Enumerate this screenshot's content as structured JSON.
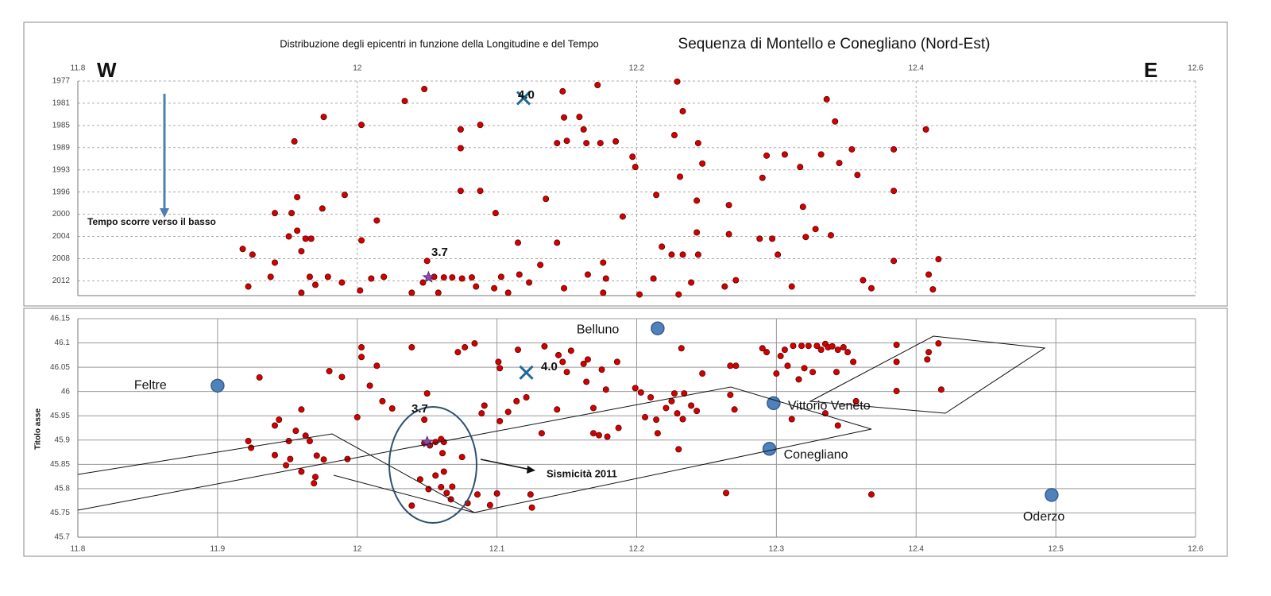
{
  "chart_data": [
    {
      "type": "scatter",
      "title": "Distribuzione degli epicentri in funzione della Longitudine e del Tempo",
      "subtitle": "Sequenza di Montello e Conegliano (Nord-Est)",
      "annotations": [
        "W",
        "E",
        "Tempo scorre verso il basso",
        "4.0",
        "3.7"
      ],
      "xlim": [
        11.8,
        12.6
      ],
      "xticks": [
        11.8,
        12,
        12.2,
        12.4,
        12.6
      ],
      "xaxis_position": "top",
      "ylim": [
        1977,
        2014.7
      ],
      "y_reversed": true,
      "yticks": [
        {
          "value": 1977,
          "label": "1977"
        },
        {
          "value": 1980.9,
          "label": "1981"
        },
        {
          "value": 1984.8,
          "label": "1985"
        },
        {
          "value": 1988.7,
          "label": "1989"
        },
        {
          "value": 1992.6,
          "label": "1993"
        },
        {
          "value": 1996.5,
          "label": "1996"
        },
        {
          "value": 2000.4,
          "label": "2000"
        },
        {
          "value": 2004.3,
          "label": "2004"
        },
        {
          "value": 2008.2,
          "label": "2008"
        },
        {
          "value": 2012.1,
          "label": "2012"
        }
      ],
      "grid": true,
      "grid_style": "dashed",
      "series": [
        {
          "color": "#d40000",
          "marker": "circle",
          "x": [
            11.918,
            11.922,
            11.925,
            11.941,
            11.938,
            11.955,
            11.957,
            11.941,
            11.953,
            11.951,
            11.957,
            11.96,
            11.963,
            11.967,
            11.976,
            11.975,
            11.966,
            11.96,
            11.979,
            11.97,
            11.991,
            11.989,
            12.003,
            12.003,
            12.014,
            12.01,
            12.002,
            12.019,
            12.034,
            12.048,
            12.039,
            12.047,
            12.05,
            12.055,
            12.062,
            12.068,
            12.058,
            12.074,
            12.074,
            12.074,
            12.075,
            12.082,
            12.088,
            12.088,
            12.085,
            12.099,
            12.098,
            12.103,
            12.108,
            12.115,
            12.116,
            12.123,
            12.131,
            12.135,
            12.143,
            12.143,
            12.147,
            12.148,
            12.15,
            12.148,
            12.159,
            12.162,
            12.164,
            12.172,
            12.174,
            12.165,
            12.176,
            12.178,
            12.176,
            12.185,
            12.19,
            12.197,
            12.199,
            12.202,
            12.212,
            12.214,
            12.218,
            12.225,
            12.227,
            12.229,
            12.233,
            12.231,
            12.23,
            12.233,
            12.239,
            12.243,
            12.244,
            12.247,
            12.243,
            12.244,
            12.263,
            12.266,
            12.266,
            12.271,
            12.288,
            12.29,
            12.293,
            12.297,
            12.301,
            12.306,
            12.311,
            12.317,
            12.321,
            12.319,
            12.328,
            12.332,
            12.336,
            12.342,
            12.339,
            12.345,
            12.354,
            12.358,
            12.362,
            12.368,
            12.384,
            12.384,
            12.384,
            12.407,
            12.409,
            12.416,
            12.412
          ],
          "values": [
            2006.5,
            2013.1,
            2007.5,
            2008.9,
            2011.4,
            1987.6,
            1997.4,
            2000.2,
            2000.2,
            2004.3,
            2003.3,
            2006.9,
            2004.7,
            2004.7,
            1983.3,
            1999.4,
            2011.4,
            2014.2,
            2011.4,
            2012.8,
            1997,
            2012.4,
            1984.7,
            2005,
            2001.5,
            2011.7,
            2013.8,
            2011.4,
            1980.5,
            1978.4,
            2014.2,
            2012.4,
            2008.6,
            2011.4,
            2011.5,
            2011.5,
            2014.2,
            1988.8,
            1985.5,
            1996.3,
            2011.7,
            2011.5,
            1984.7,
            1996.3,
            2013.1,
            2000.2,
            2013.4,
            2011.4,
            2014.2,
            2005.4,
            2011,
            2012.4,
            2009.3,
            1997.7,
            2005.4,
            1987.9,
            1978.8,
            1983.4,
            1987.5,
            2013.4,
            1983.3,
            1985.5,
            1987.9,
            1977.7,
            1987.9,
            2011,
            2008.9,
            2011.7,
            2014.2,
            1987.6,
            2000.8,
            1990.3,
            1992.1,
            2014.5,
            2011.7,
            1997,
            2006.1,
            2007.5,
            1986.5,
            1977.1,
            1982.3,
            1993.8,
            2014.5,
            2007.5,
            2012.4,
            1998,
            1987.9,
            1991.5,
            2003.6,
            2007.5,
            2013.1,
            1998.8,
            2003.9,
            2012,
            2004.7,
            1994,
            1990.1,
            2004.7,
            2007.5,
            1989.9,
            2013.1,
            1992.1,
            2004.4,
            1999.1,
            2003,
            1989.9,
            1980.2,
            1984.1,
            2004.1,
            1991.4,
            1989,
            1993.5,
            2012,
            2013.4,
            1989,
            1996.3,
            2008.6,
            1985.5,
            2011,
            2008.3,
            2013.6
          ]
        },
        {
          "color": "#1f6a96",
          "marker": "x",
          "x": [
            12.119
          ],
          "values": [
            1980
          ]
        },
        {
          "color": "#8a4aa8",
          "marker": "star",
          "x": [
            12.051
          ],
          "values": [
            2011.5
          ]
        }
      ]
    },
    {
      "type": "scatter",
      "ylabel": "Titolo asse",
      "annotations": [
        "4.0",
        "3.7",
        "Sismicità 2011"
      ],
      "xlim": [
        11.8,
        12.6
      ],
      "xticks": [
        11.8,
        11.9,
        12,
        12.1,
        12.2,
        12.3,
        12.4,
        12.5,
        12.6
      ],
      "xaxis_position": "bottom",
      "ylim": [
        45.7,
        46.15
      ],
      "yticks": [
        45.7,
        45.75,
        45.8,
        45.85,
        45.9,
        45.95,
        46,
        46.05,
        46.1,
        46.15
      ],
      "grid": true,
      "grid_style": "solid",
      "series": [
        {
          "color": "#d40000",
          "marker": "circle",
          "x": [
            11.922,
            11.924,
            11.941,
            11.93,
            11.941,
            11.944,
            11.951,
            11.949,
            11.952,
            11.956,
            11.96,
            11.96,
            11.963,
            11.966,
            11.969,
            11.97,
            11.971,
            11.976,
            11.98,
            11.989,
            11.993,
            12.0,
            12.003,
            12.003,
            12.009,
            12.014,
            12.018,
            12.025,
            12.039,
            12.039,
            12.048,
            12.05,
            12.048,
            12.052,
            12.056,
            12.06,
            12.062,
            12.045,
            12.051,
            12.056,
            12.06,
            12.062,
            12.064,
            12.067,
            12.068,
            12.061,
            12.072,
            12.077,
            12.075,
            12.084,
            12.079,
            12.086,
            12.091,
            12.089,
            12.095,
            12.1,
            12.101,
            12.102,
            12.102,
            12.108,
            12.114,
            12.115,
            12.121,
            12.124,
            12.125,
            12.132,
            12.134,
            12.143,
            12.144,
            12.147,
            12.15,
            12.153,
            12.162,
            12.164,
            12.165,
            12.169,
            12.169,
            12.173,
            12.179,
            12.175,
            12.178,
            12.186,
            12.187,
            12.199,
            12.203,
            12.206,
            12.21,
            12.214,
            12.215,
            12.221,
            12.225,
            12.227,
            12.229,
            12.23,
            12.232,
            12.233,
            12.234,
            12.239,
            12.243,
            12.247,
            12.264,
            12.267,
            12.271,
            12.267,
            12.27,
            12.29,
            12.293,
            12.303,
            12.3,
            12.306,
            12.308,
            12.312,
            12.318,
            12.316,
            12.32,
            12.323,
            12.326,
            12.329,
            12.332,
            12.335,
            12.337,
            12.34,
            12.344,
            12.348,
            12.351,
            12.335,
            12.343,
            12.355,
            12.357,
            12.344,
            12.368,
            12.386,
            12.386,
            12.386,
            12.409,
            12.416,
            12.418,
            12.408,
            12.311
          ],
          "values": [
            45.898,
            45.884,
            45.93,
            46.029,
            45.869,
            45.942,
            45.898,
            45.848,
            45.861,
            45.919,
            45.963,
            45.835,
            45.909,
            45.898,
            45.811,
            45.824,
            45.868,
            45.86,
            46.042,
            46.03,
            45.861,
            45.947,
            46.091,
            46.071,
            46.012,
            46.053,
            45.98,
            45.965,
            46.091,
            45.765,
            45.942,
            45.996,
            45.894,
            45.889,
            45.896,
            45.902,
            45.896,
            45.819,
            45.799,
            45.827,
            45.803,
            45.835,
            45.791,
            45.778,
            45.804,
            45.873,
            46.081,
            46.091,
            45.865,
            46.099,
            45.77,
            45.788,
            45.971,
            45.955,
            45.766,
            45.79,
            46.061,
            46.048,
            45.939,
            45.958,
            45.98,
            46.086,
            45.988,
            45.788,
            45.761,
            45.914,
            46.093,
            45.963,
            46.075,
            46.061,
            46.04,
            46.084,
            46.057,
            46.02,
            46.066,
            45.966,
            45.914,
            45.91,
            45.907,
            46.045,
            46.004,
            46.061,
            45.925,
            46.007,
            45.998,
            45.947,
            45.988,
            45.942,
            45.914,
            45.966,
            45.98,
            45.996,
            45.955,
            45.881,
            46.089,
            45.943,
            45.996,
            45.971,
            45.96,
            46.037,
            45.791,
            46.053,
            46.053,
            45.993,
            45.963,
            46.089,
            46.081,
            46.073,
            46.037,
            46.086,
            46.053,
            46.094,
            46.094,
            46.025,
            46.048,
            46.094,
            46.04,
            46.094,
            46.086,
            46.098,
            46.091,
            46.093,
            46.086,
            46.091,
            46.081,
            45.955,
            46.04,
            46.061,
            45.98,
            45.93,
            45.788,
            46.096,
            46.061,
            46.001,
            46.081,
            46.099,
            46.004,
            46.066,
            45.943
          ]
        },
        {
          "color": "#1f6a96",
          "marker": "x",
          "x": [
            12.121
          ],
          "values": [
            46.039
          ]
        },
        {
          "color": "#8a4aa8",
          "marker": "star",
          "x": [
            12.05
          ],
          "values": [
            45.896
          ]
        }
      ],
      "towns": {
        "color": "#4f81bd",
        "names": [
          "Feltre",
          "Belluno",
          "Vittorio Veneto",
          "Conegliano",
          "Oderzo"
        ],
        "x": [
          11.9,
          12.215,
          12.298,
          12.295,
          12.497
        ],
        "values": [
          46.012,
          46.13,
          45.976,
          45.882,
          45.787
        ]
      }
    }
  ]
}
